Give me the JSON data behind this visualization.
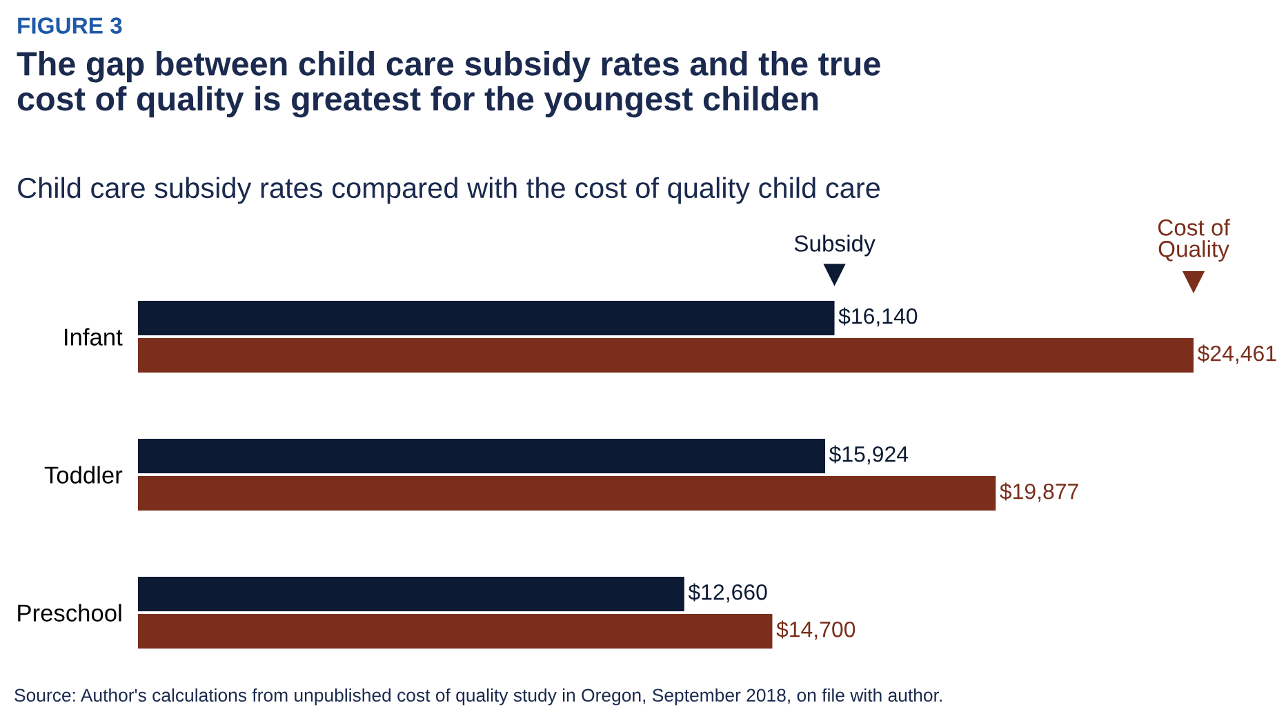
{
  "chart_data": {
    "type": "bar",
    "orientation": "horizontal",
    "title": "The gap between child care subsidy rates and the true\ncost of quality is greatest for the youngest childen",
    "subtitle": "Child care subsidy rates compared with the cost of quality child care",
    "annotations": [
      "FIGURE 3",
      "Source: Author's calculations from unpublished cost of quality study in Oregon, September 2018, on file with author."
    ],
    "categories": [
      "Infant",
      "Toddler",
      "Preschool"
    ],
    "series": [
      {
        "name": "Subsidy",
        "color": "#0c1a33",
        "values": [
          16140,
          15924,
          12660
        ],
        "value_labels": [
          "$16,140",
          "$15,924",
          "$12,660"
        ]
      },
      {
        "name": "Cost of\nQuality",
        "color": "#7a2e1b",
        "values": [
          24461,
          19877,
          14700
        ],
        "value_labels": [
          "$24,461",
          "$19,877",
          "$14,700"
        ]
      }
    ],
    "legend": false,
    "grid": false
  }
}
